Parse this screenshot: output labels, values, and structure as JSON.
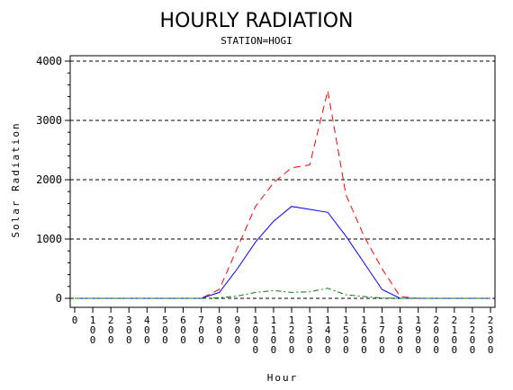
{
  "chart_data": {
    "type": "line",
    "title": "HOURLY RADIATION",
    "subtitle": "STATION=HOGI",
    "xlabel": "Hour",
    "ylabel": "Solar Radiation",
    "x": [
      0,
      100,
      200,
      300,
      400,
      500,
      600,
      700,
      800,
      900,
      1000,
      1100,
      1200,
      1300,
      1400,
      1500,
      1600,
      1700,
      1800,
      1900,
      2000,
      2100,
      2200,
      2300
    ],
    "xlim": [
      0,
      2300
    ],
    "ylim": [
      0,
      4000
    ],
    "yticks": [
      0,
      1000,
      2000,
      3000,
      4000
    ],
    "ytick_labels": [
      "0",
      "1000",
      "2000",
      "3000",
      "4000"
    ],
    "xtick_labels": [
      "0",
      "100",
      "200",
      "300",
      "400",
      "500",
      "600",
      "700",
      "800",
      "900",
      "1000",
      "1100",
      "1200",
      "1300",
      "1400",
      "1500",
      "1600",
      "1700",
      "1800",
      "1900",
      "2000",
      "2100",
      "2200",
      "2300"
    ],
    "grid": "horizontal-dashed",
    "series": [
      {
        "color": "#ff0000",
        "dash": "dashed",
        "values": [
          0,
          0,
          0,
          0,
          0,
          0,
          0,
          0,
          150,
          850,
          1550,
          1950,
          2200,
          2250,
          3500,
          1750,
          1050,
          500,
          30,
          0,
          0,
          0,
          0,
          0
        ]
      },
      {
        "color": "#0000ff",
        "dash": "solid",
        "values": [
          0,
          0,
          0,
          0,
          0,
          0,
          0,
          0,
          100,
          500,
          950,
          1300,
          1550,
          1500,
          1450,
          1050,
          600,
          150,
          0,
          0,
          0,
          0,
          0,
          0
        ]
      },
      {
        "color": "#008000",
        "dash": "dashdot",
        "values": [
          0,
          0,
          0,
          0,
          0,
          0,
          0,
          0,
          10,
          40,
          100,
          130,
          100,
          110,
          170,
          60,
          30,
          5,
          0,
          0,
          0,
          0,
          0,
          0
        ]
      }
    ]
  }
}
